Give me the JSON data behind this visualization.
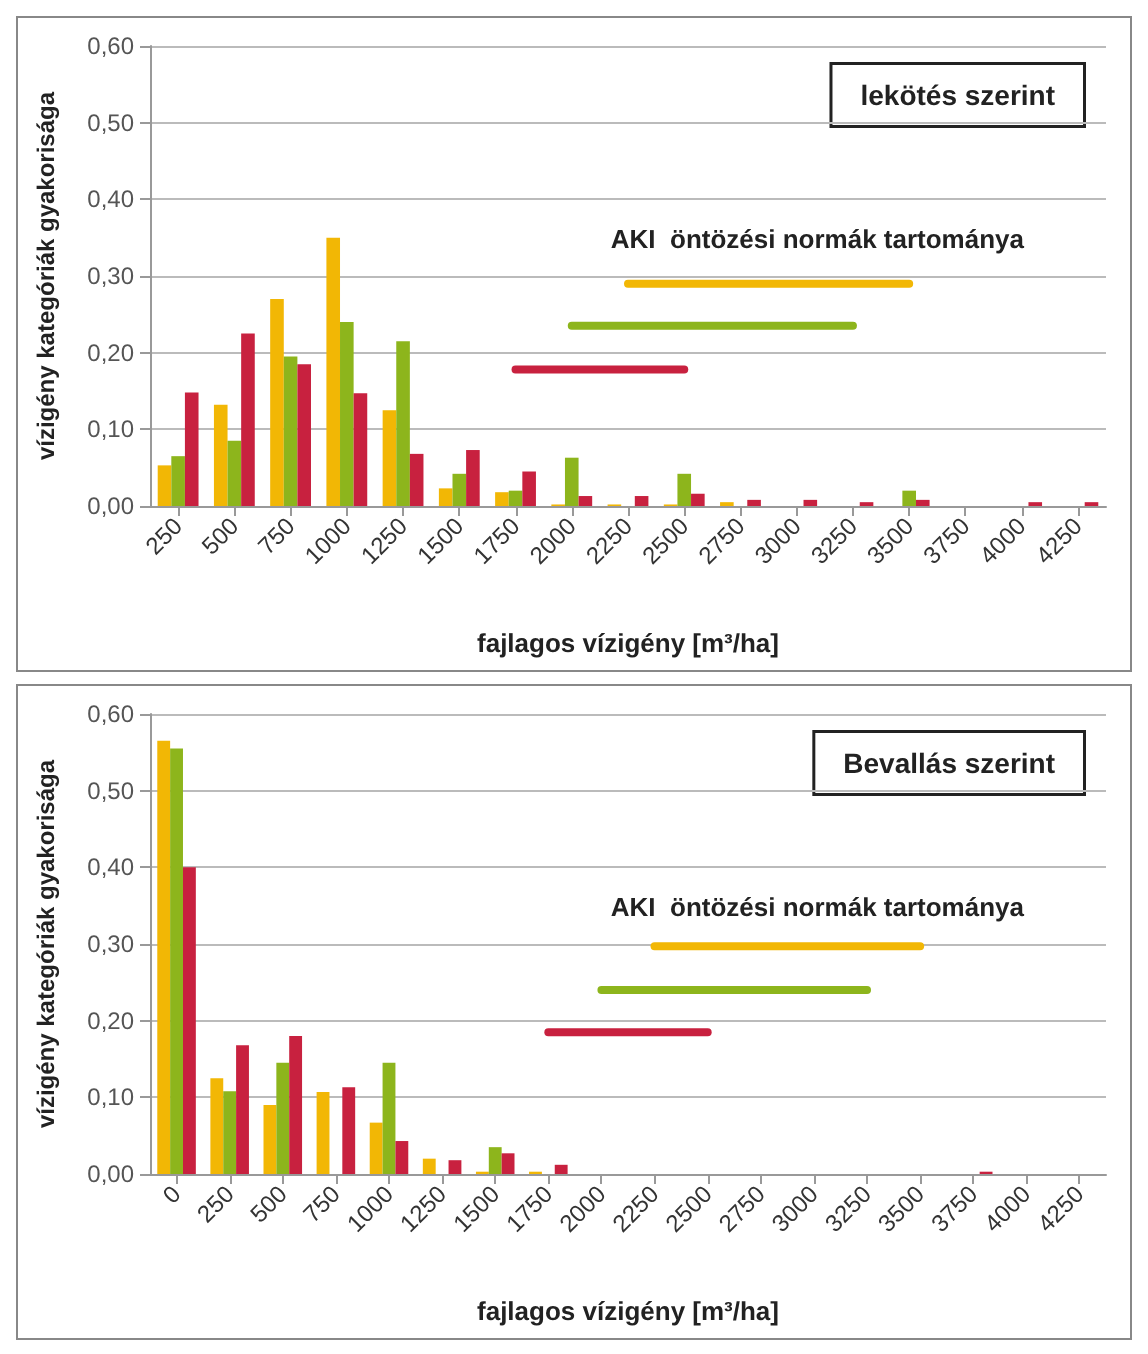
{
  "chart_data": [
    {
      "type": "bar",
      "xlabel": "fajlagos vízigény [m³/ha]",
      "ylabel": "vízigény kategóriák gyakorisága",
      "annotations": [
        "lekötés szerint",
        "AKI  öntözési normák tartománya"
      ],
      "x": [
        250,
        500,
        750,
        1000,
        1250,
        1500,
        1750,
        2000,
        2250,
        2500,
        2750,
        3000,
        3250,
        3500,
        3750,
        4000,
        4250
      ],
      "xlim": [
        125,
        4375
      ],
      "xticks": [
        250,
        500,
        750,
        1000,
        1250,
        1500,
        1750,
        2000,
        2250,
        2500,
        2750,
        3000,
        3250,
        3500,
        3750,
        4000,
        4250
      ],
      "ylim": [
        0,
        0.6
      ],
      "yticks": [
        {
          "value": 0,
          "label": "0,00"
        },
        {
          "value": 0.1,
          "label": "0,10"
        },
        {
          "value": 0.2,
          "label": "0,20"
        },
        {
          "value": 0.3,
          "label": "0,30"
        },
        {
          "value": 0.4,
          "label": "0,40"
        },
        {
          "value": 0.5,
          "label": "0,50"
        },
        {
          "value": 0.6,
          "label": "0,60"
        }
      ],
      "grid": "y",
      "marker": "none",
      "line_style": "solid",
      "series": [
        {
          "color": "#f2b705",
          "values": [
            0.053,
            0.132,
            0.27,
            0.35,
            0.125,
            0.023,
            0.018,
            0.002,
            0.002,
            0.002,
            0.005,
            0,
            0,
            0,
            0,
            0,
            0
          ]
        },
        {
          "color": "#8db51c",
          "values": [
            0.065,
            0.085,
            0.195,
            0.24,
            0.215,
            0.042,
            0.02,
            0.063,
            0,
            0.042,
            0,
            0,
            0,
            0.02,
            0,
            0,
            0
          ]
        },
        {
          "color": "#c8213f",
          "values": [
            0.148,
            0.225,
            0.185,
            0.147,
            0.068,
            0.073,
            0.045,
            0.013,
            0.013,
            0.016,
            0.008,
            0.008,
            0.005,
            0.008,
            0,
            0.005,
            0.005
          ]
        },
        {
          "type": "line",
          "color": "#f2b705",
          "x": [
            2250,
            3500
          ],
          "values": [
            0.29,
            0.29
          ]
        },
        {
          "type": "line",
          "color": "#8db51c",
          "x": [
            2000,
            3250
          ],
          "values": [
            0.235,
            0.235
          ]
        },
        {
          "type": "line",
          "color": "#c8213f",
          "x": [
            1750,
            2500
          ],
          "values": [
            0.178,
            0.178
          ]
        }
      ]
    },
    {
      "type": "bar",
      "xlabel": "fajlagos vízigény [m³/ha]",
      "ylabel": "vízigény kategóriák gyakorisága",
      "annotations": [
        "Bevallás szerint",
        "AKI  öntözési normák tartománya"
      ],
      "x": [
        0,
        250,
        500,
        750,
        1000,
        1250,
        1500,
        1750,
        2000,
        2250,
        2500,
        2750,
        3000,
        3250,
        3500,
        3750,
        4000,
        4250
      ],
      "xlim": [
        -125,
        4375
      ],
      "xticks": [
        0,
        250,
        500,
        750,
        1000,
        1250,
        1500,
        1750,
        2000,
        2250,
        2500,
        2750,
        3000,
        3250,
        3500,
        3750,
        4000,
        4250
      ],
      "ylim": [
        0,
        0.6
      ],
      "yticks": [
        {
          "value": 0,
          "label": "0,00"
        },
        {
          "value": 0.1,
          "label": "0,10"
        },
        {
          "value": 0.2,
          "label": "0,20"
        },
        {
          "value": 0.3,
          "label": "0,30"
        },
        {
          "value": 0.4,
          "label": "0,40"
        },
        {
          "value": 0.5,
          "label": "0,50"
        },
        {
          "value": 0.6,
          "label": "0,60"
        }
      ],
      "grid": "y",
      "marker": "none",
      "line_style": "solid",
      "series": [
        {
          "color": "#f2b705",
          "values": [
            0.565,
            0.125,
            0.09,
            0.107,
            0.067,
            0.02,
            0.003,
            0.003,
            0,
            0,
            0,
            0,
            0,
            0,
            0,
            0,
            0,
            0
          ]
        },
        {
          "color": "#8db51c",
          "values": [
            0.555,
            0.108,
            0.145,
            0,
            0.145,
            0,
            0.035,
            0,
            0,
            0,
            0,
            0,
            0,
            0,
            0,
            0,
            0,
            0
          ]
        },
        {
          "color": "#c8213f",
          "values": [
            0.4,
            0.168,
            0.18,
            0.113,
            0.043,
            0.018,
            0.027,
            0.012,
            0,
            0,
            0,
            0,
            0,
            0,
            0,
            0.003,
            0,
            0
          ]
        },
        {
          "type": "line",
          "color": "#f2b705",
          "x": [
            2250,
            3500
          ],
          "values": [
            0.297,
            0.297
          ]
        },
        {
          "type": "line",
          "color": "#8db51c",
          "x": [
            2000,
            3250
          ],
          "values": [
            0.24,
            0.24
          ]
        },
        {
          "type": "line",
          "color": "#c8213f",
          "x": [
            1750,
            2500
          ],
          "values": [
            0.185,
            0.185
          ]
        }
      ]
    }
  ]
}
